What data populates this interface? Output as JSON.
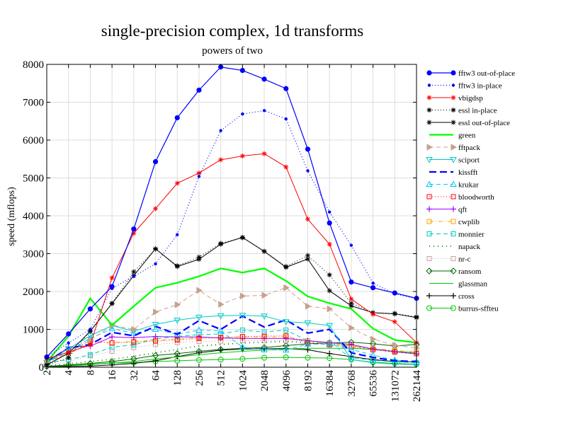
{
  "chart_data": {
    "type": "line",
    "title": "single-precision complex, 1d transforms",
    "subtitle": "powers of two",
    "xlabel": "",
    "ylabel": "speed (mflops)",
    "ylim": [
      0,
      8000
    ],
    "yticks": [
      "0",
      "1000",
      "2000",
      "3000",
      "4000",
      "5000",
      "6000",
      "7000",
      "8000"
    ],
    "categories": [
      "2",
      "4",
      "8",
      "16",
      "32",
      "64",
      "128",
      "256",
      "512",
      "1024",
      "2048",
      "4096",
      "8192",
      "16384",
      "32768",
      "65536",
      "131072",
      "262144"
    ],
    "grid": true,
    "legend_position": "right",
    "series": [
      {
        "name": "fftw3 out-of-place",
        "color": "#0000ff",
        "dash": "",
        "marker": "dot",
        "width": 1.2,
        "values": [
          270,
          880,
          1540,
          2130,
          3650,
          5430,
          6590,
          7320,
          7930,
          7840,
          7610,
          7360,
          5760,
          3810,
          2250,
          2100,
          1960,
          1820
        ]
      },
      {
        "name": "fftw3 in-place",
        "color": "#0000ff",
        "dash": "1,3",
        "marker": "smalldot",
        "width": 1.2,
        "values": [
          270,
          640,
          1000,
          2080,
          2400,
          2730,
          3500,
          5040,
          6250,
          6690,
          6780,
          6560,
          5190,
          4100,
          3220,
          2220,
          1940,
          1810
        ]
      },
      {
        "name": "vbigdsp",
        "color": "#ff0000",
        "dash": "",
        "marker": "star",
        "width": 1.0,
        "values": [
          230,
          390,
          590,
          2360,
          3540,
          4190,
          4860,
          5130,
          5480,
          5580,
          5640,
          5290,
          3910,
          3250,
          1800,
          1400,
          1200,
          650
        ]
      },
      {
        "name": "essl in-place",
        "color": "#000000",
        "dash": "1,3",
        "marker": "star",
        "width": 1.0,
        "values": [
          60,
          250,
          960,
          1690,
          2520,
          3120,
          2680,
          2910,
          3270,
          3420,
          3060,
          2660,
          2950,
          2440,
          1690,
          1440,
          1420,
          1330
        ]
      },
      {
        "name": "essl out-of-place",
        "color": "#000000",
        "dash": "",
        "marker": "star",
        "width": 1.0,
        "values": [
          60,
          370,
          950,
          1680,
          2420,
          3130,
          2660,
          2850,
          3250,
          3430,
          3060,
          2640,
          2860,
          2020,
          1620,
          1440,
          1410,
          1310
        ]
      },
      {
        "name": "green",
        "color": "#00ff00",
        "dash": "",
        "marker": "none",
        "width": 2.2,
        "values": [
          140,
          820,
          1820,
          1110,
          1610,
          2100,
          2230,
          2400,
          2610,
          2500,
          2610,
          2280,
          1870,
          1690,
          1540,
          1020,
          720,
          650
        ]
      },
      {
        "name": "fftpack",
        "color": "#c8a08c",
        "dash": "6,4",
        "marker": "triangle-right",
        "width": 1.0,
        "values": [
          120,
          380,
          710,
          1110,
          1000,
          1460,
          1650,
          2030,
          1660,
          1880,
          1900,
          2100,
          1610,
          1540,
          1040,
          740,
          580,
          510
        ]
      },
      {
        "name": "sciport",
        "color": "#00c8c8",
        "dash": "",
        "marker": "triangle-down",
        "width": 1.0,
        "values": [
          120,
          490,
          830,
          1100,
          950,
          1130,
          1240,
          1320,
          1360,
          1370,
          1350,
          1200,
          1170,
          1100,
          200,
          120,
          80,
          70
        ]
      },
      {
        "name": "kissfft",
        "color": "#0000ff",
        "dash": "10,5",
        "marker": "none",
        "width": 2.2,
        "values": [
          150,
          500,
          600,
          920,
          830,
          1080,
          870,
          1230,
          1000,
          1350,
          1060,
          1250,
          900,
          1000,
          380,
          260,
          170,
          150
        ]
      },
      {
        "name": "krukar",
        "color": "#00c8ff",
        "dash": "6,4",
        "marker": "triangle-up",
        "width": 1.0,
        "values": [
          130,
          420,
          760,
          1020,
          900,
          1000,
          870,
          980,
          960,
          530,
          460,
          450,
          610,
          610,
          470,
          320,
          190,
          130
        ]
      },
      {
        "name": "bloodworth",
        "color": "#ff0000",
        "dash": "1,3",
        "marker": "square",
        "width": 1.0,
        "values": [
          120,
          430,
          690,
          640,
          660,
          690,
          720,
          760,
          780,
          810,
          820,
          830,
          640,
          590,
          530,
          460,
          400,
          360
        ]
      },
      {
        "name": "qft",
        "color": "#a000ff",
        "dash": "",
        "marker": "plus",
        "width": 1.0,
        "values": [
          140,
          520,
          560,
          800,
          780,
          810,
          800,
          800,
          770,
          760,
          760,
          760,
          700,
          650,
          600,
          480,
          410,
          350
        ]
      },
      {
        "name": "cwplib",
        "color": "#ffa000",
        "dash": "6,3,1,3",
        "marker": "square",
        "width": 1.0,
        "values": [
          120,
          350,
          660,
          650,
          680,
          710,
          740,
          780,
          790,
          800,
          800,
          800,
          700,
          620,
          560,
          500,
          440,
          400
        ]
      },
      {
        "name": "monnier",
        "color": "#00c8c8",
        "dash": "6,4",
        "marker": "square",
        "width": 1.0,
        "values": [
          120,
          200,
          330,
          530,
          590,
          750,
          810,
          860,
          880,
          980,
          930,
          980,
          700,
          640,
          250,
          180,
          140,
          120
        ]
      },
      {
        "name": "napack",
        "color": "#008000",
        "dash": "1,5",
        "marker": "none",
        "width": 1.8,
        "values": [
          30,
          90,
          150,
          210,
          290,
          380,
          470,
          560,
          600,
          640,
          660,
          680,
          650,
          620,
          560,
          480,
          400,
          360
        ]
      },
      {
        "name": "nr-c",
        "color": "#c8a0a0",
        "dash": "1,3",
        "marker": "square",
        "width": 1.0,
        "values": [
          50,
          150,
          300,
          420,
          520,
          600,
          650,
          680,
          690,
          700,
          700,
          700,
          660,
          620,
          560,
          490,
          420,
          360
        ]
      },
      {
        "name": "ransom",
        "color": "#006400",
        "dash": "",
        "marker": "diamond",
        "width": 1.0,
        "values": [
          20,
          60,
          100,
          150,
          220,
          310,
          360,
          420,
          470,
          500,
          520,
          570,
          620,
          640,
          660,
          620,
          560,
          600
        ]
      },
      {
        "name": "glassman",
        "color": "#00c800",
        "dash": "",
        "marker": "none",
        "width": 1.0,
        "values": [
          20,
          40,
          70,
          110,
          150,
          220,
          270,
          330,
          380,
          420,
          450,
          480,
          500,
          500,
          500,
          470,
          420,
          380
        ]
      },
      {
        "name": "cross",
        "color": "#000000",
        "dash": "",
        "marker": "plus",
        "width": 1.0,
        "values": [
          10,
          20,
          30,
          60,
          100,
          170,
          280,
          380,
          450,
          480,
          490,
          490,
          460,
          360,
          280,
          200,
          150,
          140
        ]
      },
      {
        "name": "burrus-sffteu",
        "color": "#00c800",
        "dash": "",
        "marker": "circle",
        "width": 1.0,
        "values": [
          30,
          50,
          80,
          110,
          120,
          150,
          170,
          190,
          200,
          220,
          250,
          260,
          250,
          240,
          200,
          130,
          100,
          80
        ]
      }
    ]
  }
}
